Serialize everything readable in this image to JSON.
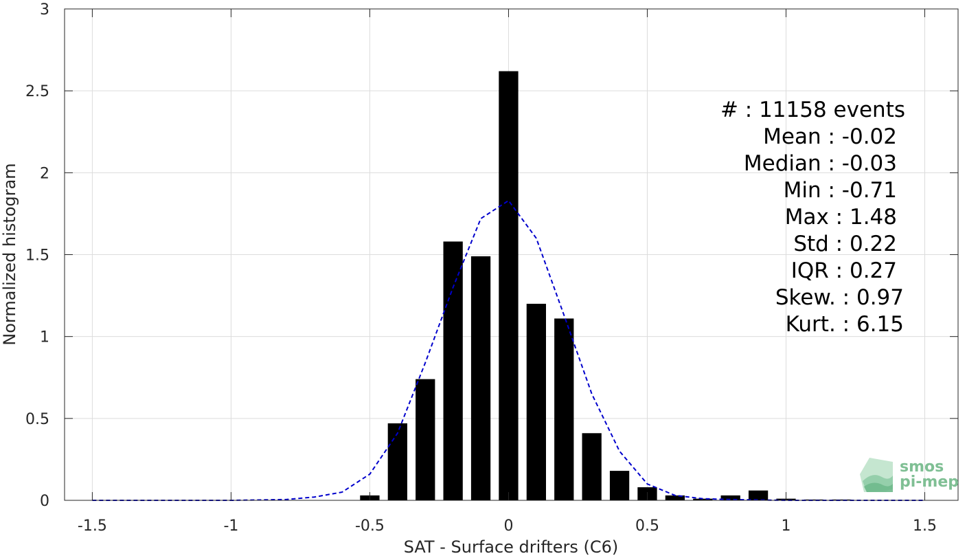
{
  "chart_data": {
    "type": "bar",
    "xlabel": "SAT - Surface drifters (C6)",
    "ylabel": "Normalized histogram",
    "xlim": [
      -1.6,
      1.62
    ],
    "ylim": [
      0,
      3
    ],
    "xticks": [
      -1.5,
      -1,
      -0.5,
      0,
      0.5,
      1,
      1.5
    ],
    "xtick_labels": [
      "-1.5",
      "-1",
      "-0.5",
      "0",
      "0.5",
      "1",
      "1.5"
    ],
    "yticks": [
      0,
      0.5,
      1,
      1.5,
      2,
      2.5,
      3
    ],
    "ytick_labels": [
      "0",
      "0.5",
      "1",
      "1.5",
      "2",
      "2.5",
      "3"
    ],
    "grid": true,
    "bar_width": 0.07,
    "bar_color": "#000000",
    "bars": {
      "x": [
        -0.5,
        -0.4,
        -0.3,
        -0.2,
        -0.1,
        0.0,
        0.1,
        0.2,
        0.3,
        0.4,
        0.5,
        0.6,
        0.7,
        0.8,
        0.9,
        1.0,
        1.1,
        1.2
      ],
      "values": [
        0.03,
        0.47,
        0.74,
        1.58,
        1.49,
        2.62,
        1.2,
        1.11,
        0.41,
        0.18,
        0.08,
        0.03,
        0.01,
        0.03,
        0.06,
        0.01,
        0.005,
        0.005
      ]
    },
    "fit_curve": {
      "style": "dashed",
      "color": "#0000cc",
      "x": [
        -1.5,
        -1.0,
        -0.8,
        -0.7,
        -0.6,
        -0.5,
        -0.4,
        -0.3,
        -0.2,
        -0.1,
        0.0,
        0.1,
        0.2,
        0.3,
        0.4,
        0.5,
        0.6,
        0.7,
        0.8,
        1.0,
        1.5
      ],
      "values": [
        0.0,
        0.0,
        0.005,
        0.02,
        0.05,
        0.16,
        0.41,
        0.84,
        1.3,
        1.72,
        1.83,
        1.6,
        1.13,
        0.65,
        0.3,
        0.1,
        0.03,
        0.01,
        0.005,
        0.0,
        0.0
      ]
    },
    "annotations": [
      "#  : 11158 events",
      "Mean : -0.02",
      "Median : -0.03",
      "Min : -0.71",
      "Max : 1.48",
      "Std : 0.22",
      "IQR : 0.27",
      "Skew. : 0.97",
      "Kurt. : 6.15"
    ]
  },
  "logo": {
    "line1": "smos",
    "line2": "pi-mep"
  }
}
